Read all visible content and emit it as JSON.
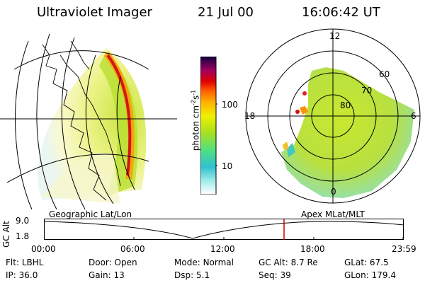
{
  "header": {
    "instrument": "Ultraviolet Imager",
    "date": "21 Jul 00",
    "time": "16:06:42 UT"
  },
  "geo_panel": {
    "caption": "Geographic Lat/Lon"
  },
  "polar_panel": {
    "caption": "Apex MLat/MLT",
    "mlt_labels": [
      "12",
      "18",
      "6",
      "0"
    ],
    "mlat_labels": [
      "60",
      "70",
      "80"
    ]
  },
  "colorbar": {
    "label": "photon cm",
    "exp1": "-2",
    "mid": "s",
    "exp2": "-1",
    "ticks": [
      "100",
      "10"
    ]
  },
  "altitude_plot": {
    "ylabel": "GC Alt",
    "yticks": [
      "9.0",
      "1.8"
    ],
    "xticks": [
      "00:00",
      "06:00",
      "12:00",
      "18:00",
      "23:59"
    ]
  },
  "params": {
    "row1": [
      {
        "key": "Flt:",
        "value": "LBHL"
      },
      {
        "key": "Door:",
        "value": "Open"
      },
      {
        "key": "Mode:",
        "value": "Normal"
      },
      {
        "key": "GC Alt:",
        "value": "8.7 Re"
      },
      {
        "key": "GLat:",
        "value": "67.5"
      }
    ],
    "row2": [
      {
        "key": "IP:",
        "value": "36.0"
      },
      {
        "key": "Gain:",
        "value": "13"
      },
      {
        "key": "Dsp:",
        "value": "5.1"
      },
      {
        "key": "Seq:",
        "value": "39"
      },
      {
        "key": "GLon:",
        "value": "179.4"
      }
    ]
  }
}
